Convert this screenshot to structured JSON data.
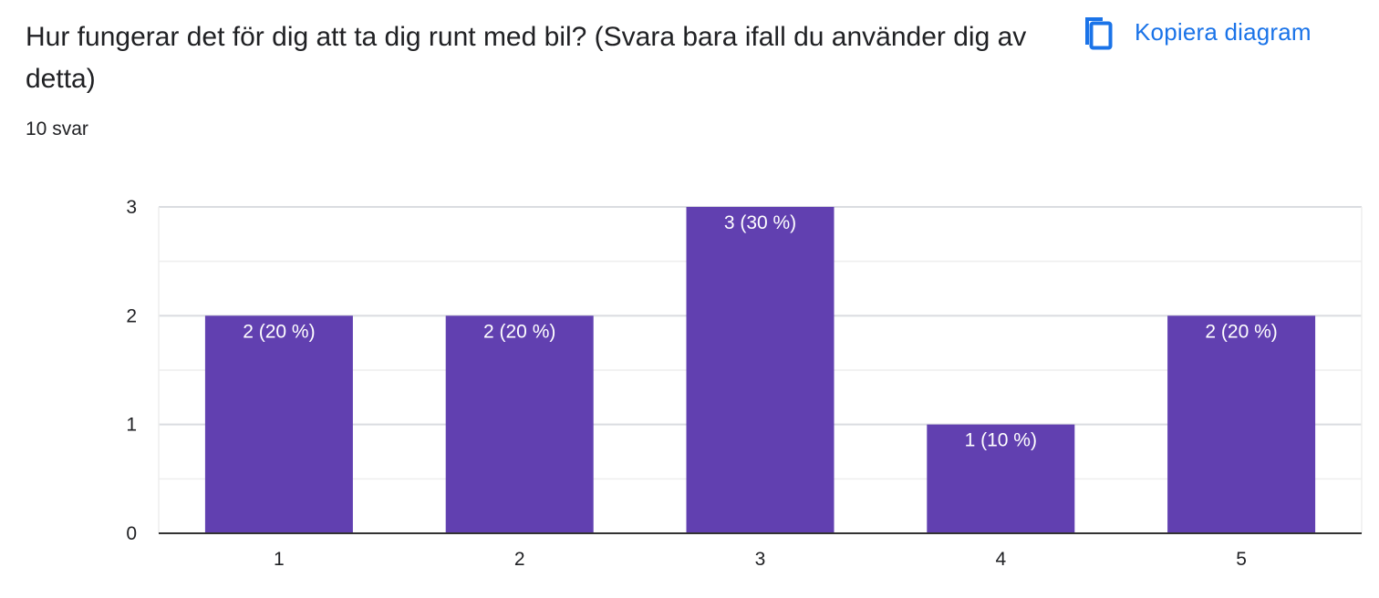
{
  "question": {
    "title": "Hur fungerar det för dig att ta dig runt med bil? (Svara bara ifall du använder dig av detta)",
    "response_count": "10 svar"
  },
  "copy_button": {
    "label": "Kopiera diagram",
    "icon": "copy-icon"
  },
  "colors": {
    "bar": "#6140b0",
    "accent": "#1a73e8",
    "text": "#202124"
  },
  "chart_data": {
    "type": "bar",
    "categories": [
      "1",
      "2",
      "3",
      "4",
      "5"
    ],
    "values": [
      2,
      2,
      3,
      1,
      2
    ],
    "data_labels": [
      "2 (20 %)",
      "2 (20 %)",
      "3 (30 %)",
      "1 (10 %)",
      "2 (20 %)"
    ],
    "y_ticks": [
      "0",
      "1",
      "2",
      "3"
    ],
    "ylim": [
      0,
      3
    ],
    "title": "",
    "xlabel": "",
    "ylabel": "",
    "grid": true
  }
}
